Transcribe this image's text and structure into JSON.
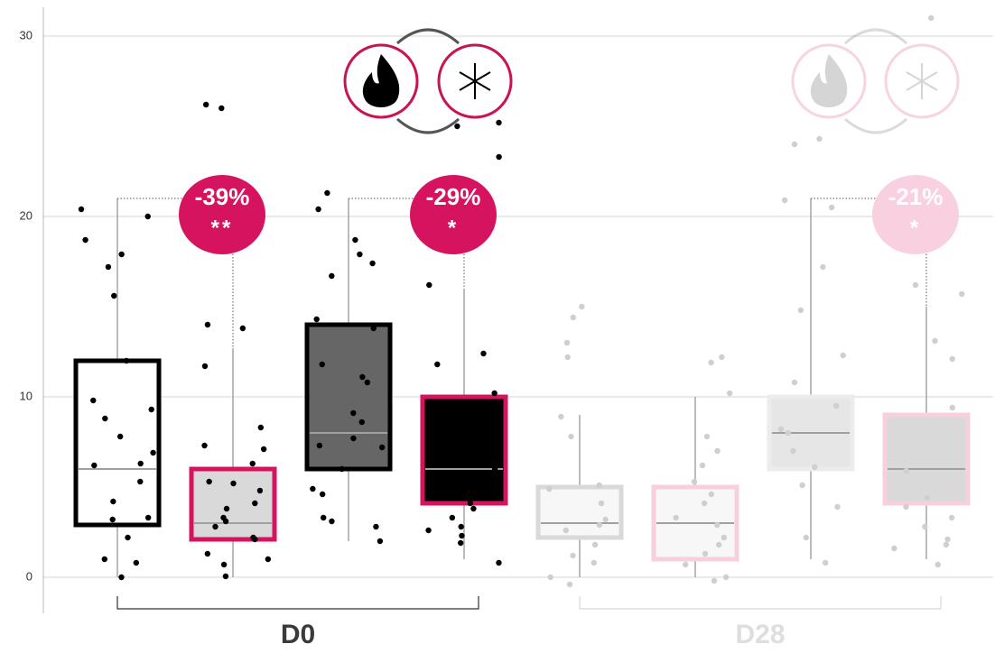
{
  "chart_data": {
    "type": "box",
    "ylim": [
      -2,
      32
    ],
    "yticks": [
      0,
      10,
      20,
      30
    ],
    "grid": true,
    "groups": [
      {
        "label": "D0",
        "label_color": "#3a3a3a",
        "point_color": "#000000",
        "annotation_color": "#d6135f",
        "boxes": [
          {
            "fill": "#ffffff",
            "stroke": "#000000",
            "min": 0,
            "q1": 2.9,
            "median": 6.0,
            "q3": 12.0,
            "max": 21.0,
            "points": [
              20.4,
              20.0,
              18.7,
              17.9,
              17.2,
              15.6,
              12.0,
              9.8,
              8.8,
              7.8,
              9.3,
              6.3,
              6.2,
              6.9,
              5.3,
              4.2,
              3.3,
              3.2,
              2.2,
              1.0,
              0.8,
              0.0
            ]
          },
          {
            "fill": "#d9d9d9",
            "stroke": "#d6135f",
            "min": 0,
            "q1": 2.1,
            "median": 3.0,
            "q3": 6.0,
            "max": 12.7,
            "points": [
              26.2,
              26.0,
              14.0,
              13.8,
              11.7,
              8.3,
              7.1,
              7.3,
              6.3,
              5.3,
              5.2,
              4.8,
              4.1,
              3.8,
              3.3,
              3.1,
              2.8,
              2.2,
              2.1,
              1.3,
              1.0,
              0.7,
              0.05
            ],
            "annotation": {
              "change": "-39%",
              "significance": "**"
            }
          },
          {
            "fill": "#666666",
            "stroke": "#000000",
            "min": 2.0,
            "q1": 6.0,
            "median": 8.0,
            "q3": 14.0,
            "max": 21.0,
            "points": [
              21.3,
              20.4,
              18.7,
              17.9,
              17.4,
              16.7,
              14.3,
              13.8,
              11.8,
              11.1,
              10.8,
              9.1,
              8.6,
              7.7,
              7.3,
              7.2,
              6.0,
              4.9,
              4.6,
              3.3,
              3.1,
              2.8,
              2.0
            ]
          },
          {
            "fill": "#000000",
            "stroke": "#d6135f",
            "min": 1.0,
            "q1": 4.1,
            "median": 6.0,
            "q3": 10.0,
            "max": 16.0,
            "points": [
              25.2,
              25.0,
              23.3,
              16.2,
              12.4,
              11.8,
              10.2,
              6.0,
              4.1,
              3.8,
              3.3,
              2.8,
              2.6,
              2.3,
              1.9,
              0.8
            ],
            "annotation": {
              "change": "-29%",
              "significance": "*"
            }
          }
        ]
      },
      {
        "label": "D28",
        "label_color": "#dedede",
        "point_color": "#cfcfcf",
        "annotation_color": "#f9d0df",
        "boxes": [
          {
            "fill": "#f7f7f7",
            "stroke": "#d9d9d9",
            "min": 0,
            "q1": 2.2,
            "median": 3.0,
            "q3": 5.0,
            "max": 9.0,
            "points": [
              15.0,
              14.4,
              13.0,
              12.2,
              8.9,
              7.8,
              5.1,
              4.9,
              4.1,
              3.2,
              2.9,
              2.6,
              1.8,
              1.2,
              0.8,
              0,
              -0.4
            ]
          },
          {
            "fill": "#f7f7f7",
            "stroke": "#f7cfdd",
            "min": 0,
            "q1": 1.0,
            "median": 3.0,
            "q3": 5.0,
            "max": 10.0,
            "points": [
              12.2,
              11.9,
              10.2,
              7.8,
              7.0,
              6.2,
              5.3,
              4.6,
              4.1,
              3.3,
              2.9,
              2.2,
              1.8,
              1.3,
              0.7,
              0,
              -0.2
            ]
          },
          {
            "fill": "#e6e6e6",
            "stroke": "#ececec",
            "min": 1.0,
            "q1": 6.0,
            "median": 8.0,
            "q3": 10.0,
            "max": 21.0,
            "points": [
              24.3,
              24.0,
              20.9,
              20.5,
              17.2,
              14.8,
              12.3,
              10.8,
              9.5,
              8.2,
              8.0,
              7.0,
              6.1,
              5.1,
              3.9,
              2.2,
              0.8
            ]
          },
          {
            "fill": "#d9d9d9",
            "stroke": "#f7cfdd",
            "min": 1.0,
            "q1": 4.1,
            "median": 6.0,
            "q3": 9.0,
            "max": 15.0,
            "points": [
              31.0,
              16.2,
              15.7,
              13.1,
              12.1,
              9.4,
              5.9,
              4.4,
              3.9,
              3.3,
              2.8,
              2.1,
              1.8,
              1.6,
              0.7
            ],
            "annotation": {
              "change": "-21%",
              "significance": "*"
            }
          }
        ]
      }
    ]
  }
}
